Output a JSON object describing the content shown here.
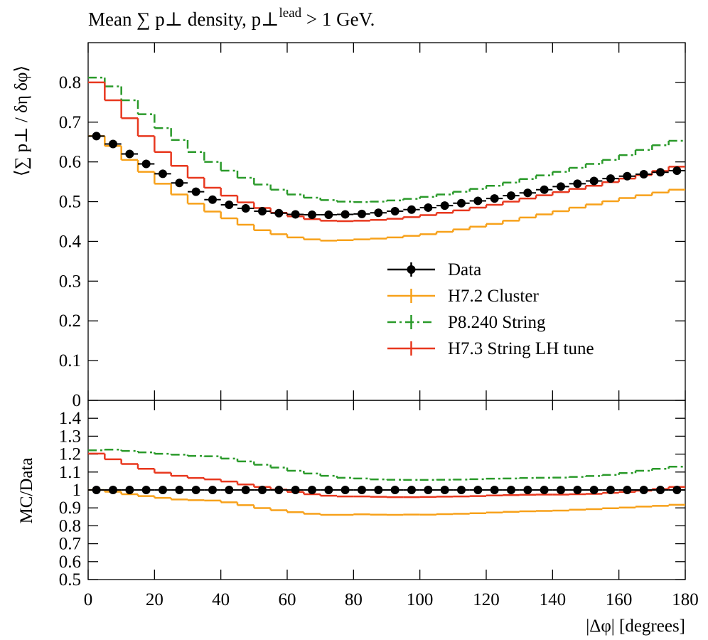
{
  "chart_data": [
    {
      "type": "histogram",
      "title_parts": [
        "Mean ∑ p⊥ density, p⊥",
        "lead",
        " > 1 GeV."
      ],
      "y_label": "⟨∑ p⊥ / δη δφ⟩",
      "bins": [
        0,
        5,
        10,
        15,
        20,
        25,
        30,
        35,
        40,
        45,
        50,
        55,
        60,
        65,
        70,
        75,
        80,
        85,
        90,
        95,
        100,
        105,
        110,
        115,
        120,
        125,
        130,
        135,
        140,
        145,
        150,
        155,
        160,
        165,
        170,
        175,
        180
      ],
      "xlim": [
        0,
        180
      ],
      "ylim": [
        0,
        0.9
      ],
      "yticks": [
        0,
        0.1,
        0.2,
        0.3,
        0.4,
        0.5,
        0.6,
        0.7,
        0.8
      ],
      "legend": "right",
      "series": [
        {
          "name": "Data",
          "color": "#000000",
          "style": "points",
          "values": [
            0.665,
            0.645,
            0.62,
            0.595,
            0.57,
            0.547,
            0.525,
            0.505,
            0.492,
            0.483,
            0.476,
            0.471,
            0.468,
            0.467,
            0.467,
            0.468,
            0.469,
            0.472,
            0.476,
            0.48,
            0.485,
            0.49,
            0.496,
            0.502,
            0.508,
            0.515,
            0.522,
            0.53,
            0.538,
            0.545,
            0.552,
            0.558,
            0.564,
            0.569,
            0.574,
            0.578
          ]
        },
        {
          "name": "H7.2 Cluster",
          "color": "#f7a11a",
          "style": "solid",
          "values": [
            0.665,
            0.64,
            0.605,
            0.575,
            0.545,
            0.518,
            0.495,
            0.475,
            0.458,
            0.442,
            0.428,
            0.418,
            0.41,
            0.405,
            0.402,
            0.403,
            0.405,
            0.407,
            0.41,
            0.414,
            0.418,
            0.424,
            0.43,
            0.437,
            0.444,
            0.452,
            0.46,
            0.468,
            0.476,
            0.485,
            0.493,
            0.501,
            0.509,
            0.516,
            0.523,
            0.53
          ]
        },
        {
          "name": "P8.240 String",
          "color": "#2a9a2a",
          "style": "dashdot",
          "values": [
            0.812,
            0.79,
            0.755,
            0.72,
            0.685,
            0.655,
            0.625,
            0.6,
            0.578,
            0.56,
            0.543,
            0.53,
            0.518,
            0.51,
            0.504,
            0.5,
            0.499,
            0.5,
            0.503,
            0.507,
            0.512,
            0.518,
            0.525,
            0.532,
            0.54,
            0.548,
            0.557,
            0.566,
            0.575,
            0.585,
            0.595,
            0.605,
            0.617,
            0.63,
            0.642,
            0.653
          ]
        },
        {
          "name": "H7.3 String LH tune",
          "color": "#e8381f",
          "style": "solid",
          "values": [
            0.8,
            0.755,
            0.71,
            0.665,
            0.625,
            0.59,
            0.56,
            0.535,
            0.515,
            0.498,
            0.484,
            0.472,
            0.463,
            0.456,
            0.452,
            0.451,
            0.452,
            0.454,
            0.457,
            0.461,
            0.466,
            0.472,
            0.478,
            0.485,
            0.492,
            0.5,
            0.508,
            0.516,
            0.524,
            0.532,
            0.54,
            0.549,
            0.558,
            0.567,
            0.577,
            0.588
          ]
        }
      ]
    },
    {
      "type": "histogram",
      "y_label": "MC/Data",
      "x_label": "|Δφ| [degrees]",
      "bins": [
        0,
        5,
        10,
        15,
        20,
        25,
        30,
        35,
        40,
        45,
        50,
        55,
        60,
        65,
        70,
        75,
        80,
        85,
        90,
        95,
        100,
        105,
        110,
        115,
        120,
        125,
        130,
        135,
        140,
        145,
        150,
        155,
        160,
        165,
        170,
        175,
        180
      ],
      "xlim": [
        0,
        180
      ],
      "ylim": [
        0.5,
        1.5
      ],
      "xticks": [
        0,
        20,
        40,
        60,
        80,
        100,
        120,
        140,
        160,
        180
      ],
      "yticks": [
        0.5,
        0.6,
        0.7,
        0.8,
        0.9,
        1,
        1.1,
        1.2,
        1.3,
        1.4
      ],
      "series": [
        {
          "color": "#000000",
          "style": "points",
          "values": [
            1,
            1,
            1,
            1,
            1,
            1,
            1,
            1,
            1,
            1,
            1,
            1,
            1,
            1,
            1,
            1,
            1,
            1,
            1,
            1,
            1,
            1,
            1,
            1,
            1,
            1,
            1,
            1,
            1,
            1,
            1,
            1,
            1,
            1,
            1,
            1
          ]
        },
        {
          "color": "#f7a11a",
          "style": "solid",
          "values": [
            1.0,
            0.99,
            0.976,
            0.966,
            0.956,
            0.947,
            0.943,
            0.941,
            0.931,
            0.915,
            0.899,
            0.887,
            0.876,
            0.867,
            0.861,
            0.861,
            0.864,
            0.862,
            0.861,
            0.8625,
            0.862,
            0.865,
            0.867,
            0.87,
            0.874,
            0.878,
            0.881,
            0.883,
            0.885,
            0.89,
            0.893,
            0.898,
            0.902,
            0.907,
            0.911,
            0.917
          ]
        },
        {
          "color": "#2a9a2a",
          "style": "dashdot",
          "values": [
            1.221,
            1.225,
            1.218,
            1.21,
            1.202,
            1.197,
            1.19,
            1.188,
            1.175,
            1.159,
            1.141,
            1.125,
            1.107,
            1.092,
            1.079,
            1.068,
            1.064,
            1.059,
            1.057,
            1.056,
            1.056,
            1.057,
            1.058,
            1.06,
            1.063,
            1.064,
            1.067,
            1.068,
            1.069,
            1.073,
            1.078,
            1.084,
            1.094,
            1.107,
            1.118,
            1.13
          ]
        },
        {
          "color": "#e8381f",
          "style": "solid",
          "values": [
            1.203,
            1.171,
            1.145,
            1.118,
            1.096,
            1.079,
            1.067,
            1.059,
            1.047,
            1.031,
            1.017,
            1.002,
            0.989,
            0.976,
            0.968,
            0.964,
            0.964,
            0.962,
            0.96,
            0.96,
            0.961,
            0.963,
            0.964,
            0.966,
            0.969,
            0.971,
            0.973,
            0.974,
            0.974,
            0.976,
            0.978,
            0.984,
            0.989,
            0.996,
            1.005,
            1.017
          ]
        }
      ]
    }
  ]
}
